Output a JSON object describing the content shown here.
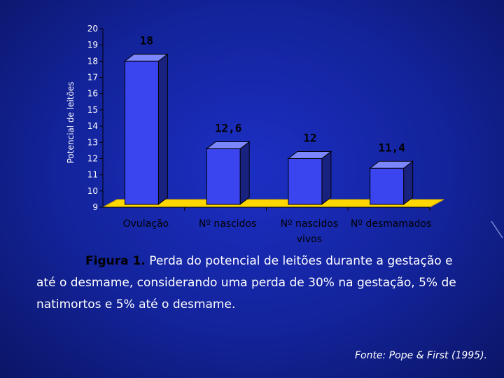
{
  "chart_data": {
    "type": "bar",
    "ylabel": "Potencial de leitões",
    "categories": [
      "Ovulação",
      "Nº nascidos",
      "Nº nascidos vivos",
      "Nº desmamados"
    ],
    "category_lines": [
      [
        "Ovulação"
      ],
      [
        "Nº nascidos"
      ],
      [
        "Nº nascidos",
        "vivos"
      ],
      [
        "Nº desmamados"
      ]
    ],
    "values": [
      18,
      12.6,
      12,
      11.4
    ],
    "data_labels": [
      "18",
      "12,6",
      "12",
      "11,4"
    ],
    "ylim": [
      9,
      20
    ],
    "yticks": [
      9,
      10,
      11,
      12,
      13,
      14,
      15,
      16,
      17,
      18,
      19,
      20
    ],
    "grid": false,
    "colors": {
      "bar": "#3a45f0",
      "bar_side": "#1a2280",
      "bar_top": "#7c86ff",
      "floor": "#ffd700",
      "floor_dark": "#c8a000",
      "label": "#000000"
    }
  },
  "caption": {
    "figure_label": "Figura 1.",
    "text_first": "Perda do potencial de leitões durante a gestação e",
    "text_rest": "até o desmame, considerando uma perda de 30% na gestação, 5% de natimortos e 5% até o desmame."
  },
  "source": "Fonte: Pope & First (1995)."
}
